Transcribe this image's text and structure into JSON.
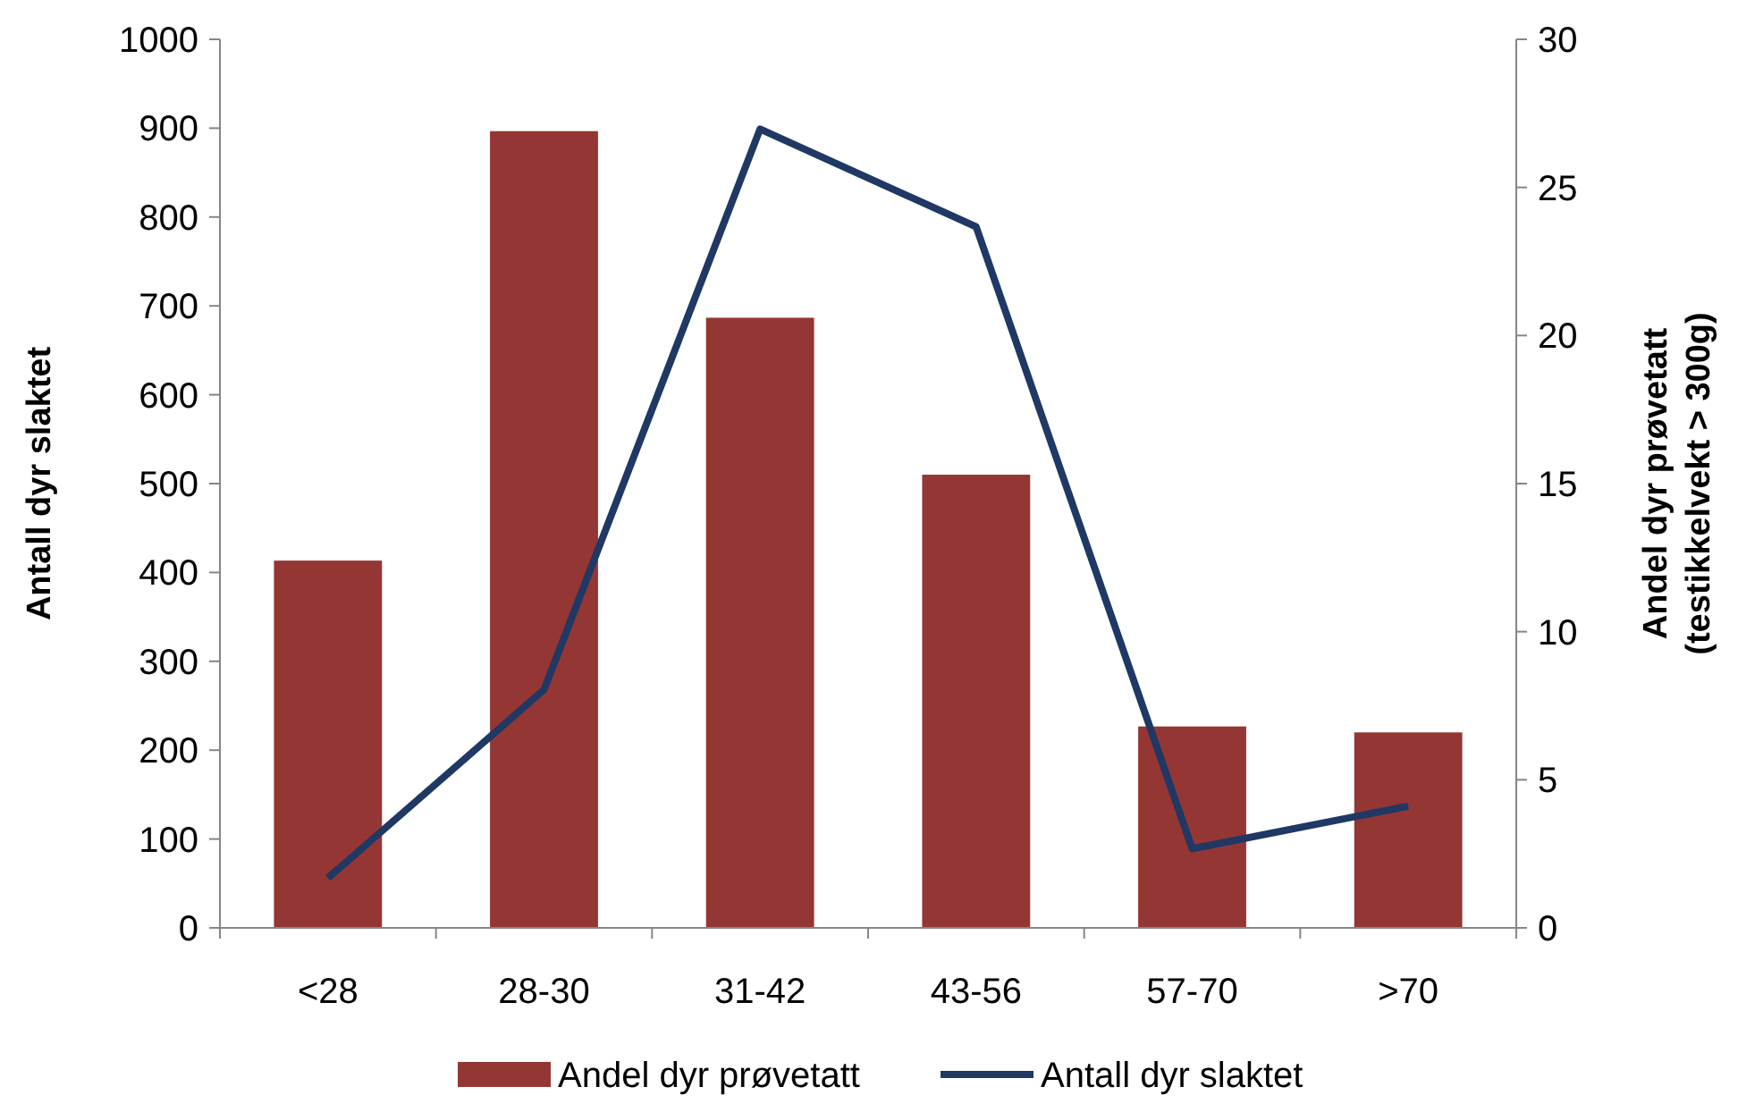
{
  "chart_data": {
    "type": "bar",
    "categories": [
      "<28",
      "28-30",
      "31-42",
      "43-56",
      "57-70",
      ">70"
    ],
    "series": [
      {
        "name": "Andel dyr prøvetatt",
        "axis": "y2",
        "color": "#943634",
        "values": [
          12.4,
          26.9,
          20.6,
          15.3,
          6.8,
          6.6
        ]
      },
      {
        "name": "Antall dyr slaktet",
        "type": "line",
        "axis": "y",
        "color": "#1f3864",
        "values": [
          56,
          268,
          899,
          789,
          89,
          137
        ]
      }
    ],
    "ylabel": "Antall dyr slaktet",
    "y2label": "Andel dyr prøvetatt (testikkelvekt > 300g)",
    "ylim": [
      0,
      1000
    ],
    "yticks": [
      0,
      100,
      200,
      300,
      400,
      500,
      600,
      700,
      800,
      900,
      1000
    ],
    "y2lim": [
      0,
      30
    ],
    "y2ticks": [
      0,
      5,
      10,
      15,
      20,
      25,
      30
    ],
    "grid": false,
    "legend": "bottom",
    "marker": "none",
    "line_style": "solid"
  }
}
